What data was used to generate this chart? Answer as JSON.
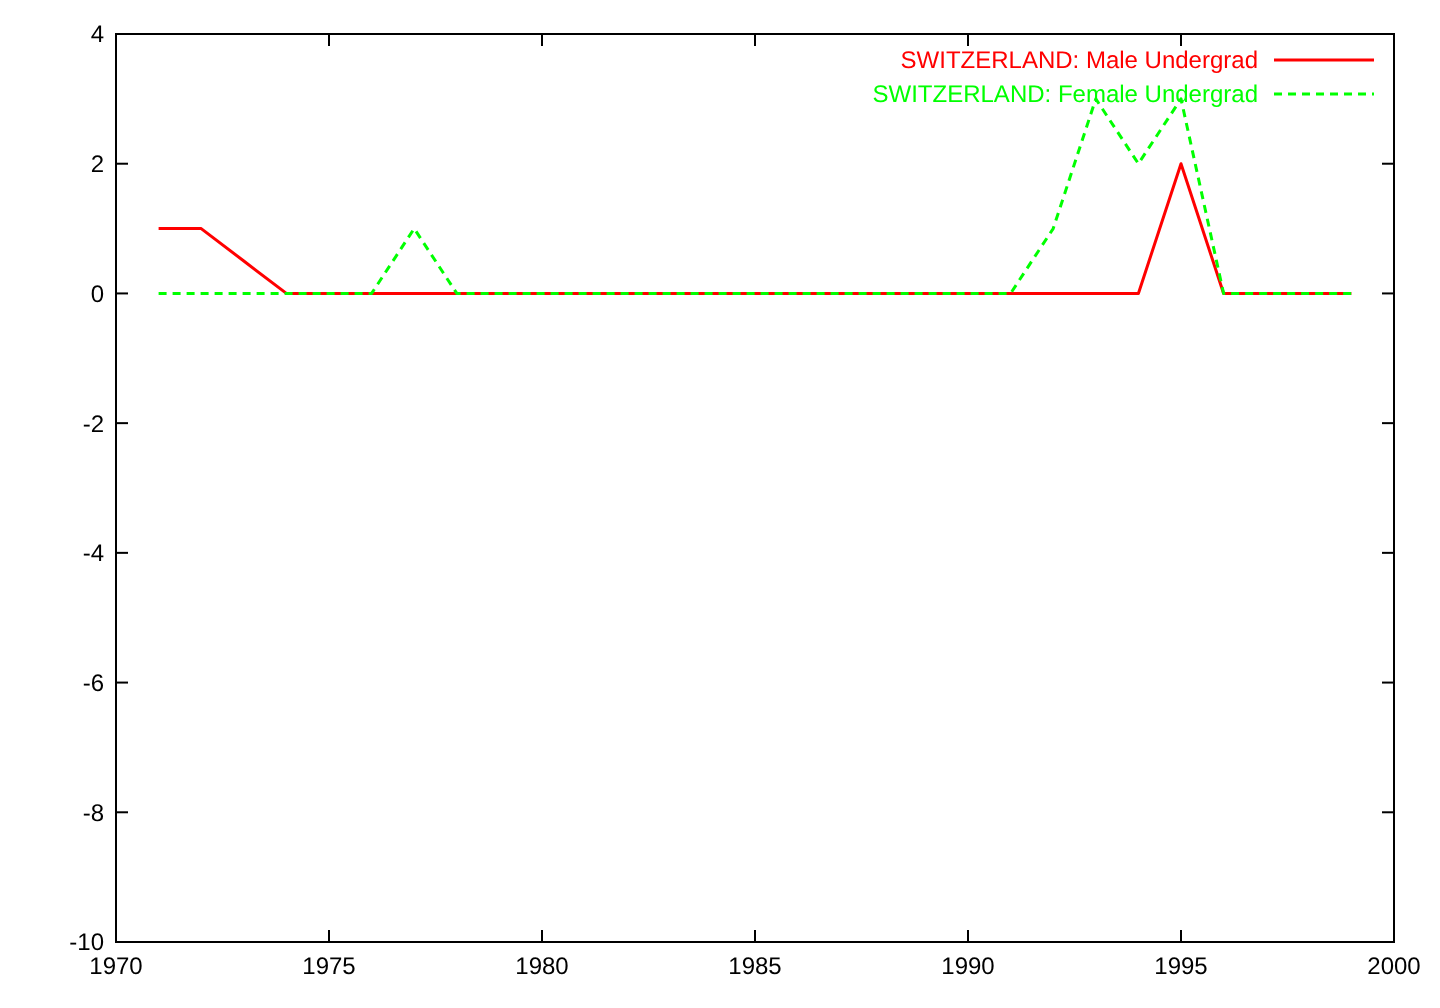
{
  "chart_data": {
    "type": "line",
    "x": [
      1971,
      1972,
      1973,
      1974,
      1975,
      1976,
      1977,
      1978,
      1979,
      1980,
      1981,
      1982,
      1983,
      1984,
      1985,
      1986,
      1987,
      1988,
      1989,
      1990,
      1991,
      1992,
      1993,
      1994,
      1995,
      1996,
      1997,
      1998,
      1999
    ],
    "series": [
      {
        "name": "SWITZERLAND: Male Undergrad",
        "color": "#ff0000",
        "line_style": "solid",
        "values": [
          1,
          1,
          0.5,
          0,
          0,
          0,
          0,
          0,
          0,
          0,
          0,
          0,
          0,
          0,
          0,
          0,
          0,
          0,
          0,
          0,
          0,
          0,
          0,
          0,
          2,
          0,
          0,
          0,
          0
        ]
      },
      {
        "name": "SWITZERLAND: Female Undergrad",
        "color": "#00ff00",
        "line_style": "dashed",
        "values": [
          0,
          0,
          0,
          0,
          0,
          0,
          1,
          0,
          0,
          0,
          0,
          0,
          0,
          0,
          0,
          0,
          0,
          0,
          0,
          0,
          0,
          1,
          3,
          2,
          3,
          0,
          0,
          0,
          0
        ]
      }
    ],
    "xlim": [
      1970,
      2000
    ],
    "xticks": [
      1970,
      1975,
      1980,
      1985,
      1990,
      1995,
      2000
    ],
    "ylim": [
      -10,
      4
    ],
    "yticks": [
      -10,
      -8,
      -6,
      -4,
      -2,
      0,
      2,
      4
    ],
    "grid": false,
    "legend": "top right"
  }
}
